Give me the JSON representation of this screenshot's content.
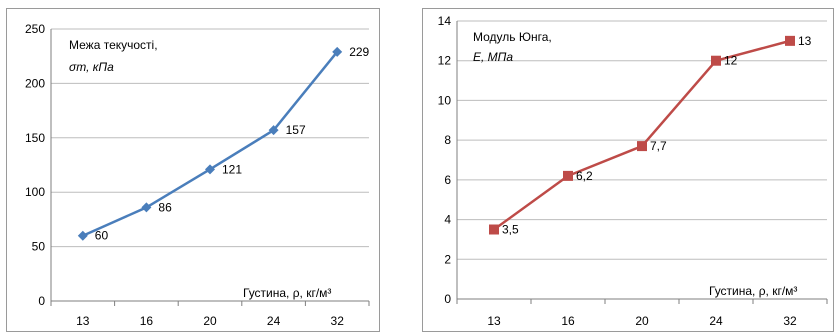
{
  "chart_data": [
    {
      "type": "line",
      "categories": [
        "13",
        "16",
        "20",
        "24",
        "32"
      ],
      "series": [
        {
          "values": [
            60,
            86,
            121,
            157,
            229
          ],
          "color": "#4a7ebb",
          "marker": "diamond"
        }
      ],
      "data_labels": [
        "60",
        "86",
        "121",
        "157",
        "229"
      ],
      "ylim": [
        0,
        250
      ],
      "yticks": [
        "0",
        "50",
        "100",
        "150",
        "200",
        "250"
      ],
      "grid": true,
      "annotation_title": "Межа текучості,",
      "annotation_unit": "σт, кПа",
      "xlabel": "Густина, ρ, кг/м³"
    },
    {
      "type": "line",
      "categories": [
        "13",
        "16",
        "20",
        "24",
        "32"
      ],
      "series": [
        {
          "values": [
            3.5,
            6.2,
            7.7,
            12,
            13
          ],
          "color": "#be4b48",
          "marker": "square"
        }
      ],
      "data_labels": [
        "3,5",
        "6,2",
        "7,7",
        "12",
        "13"
      ],
      "ylim": [
        0,
        14
      ],
      "yticks": [
        "0",
        "2",
        "4",
        "6",
        "8",
        "10",
        "12",
        "14"
      ],
      "grid": true,
      "annotation_title": "Модуль Юнга,",
      "annotation_unit": "E, МПа",
      "xlabel": "Густина, ρ, кг/м³"
    }
  ]
}
